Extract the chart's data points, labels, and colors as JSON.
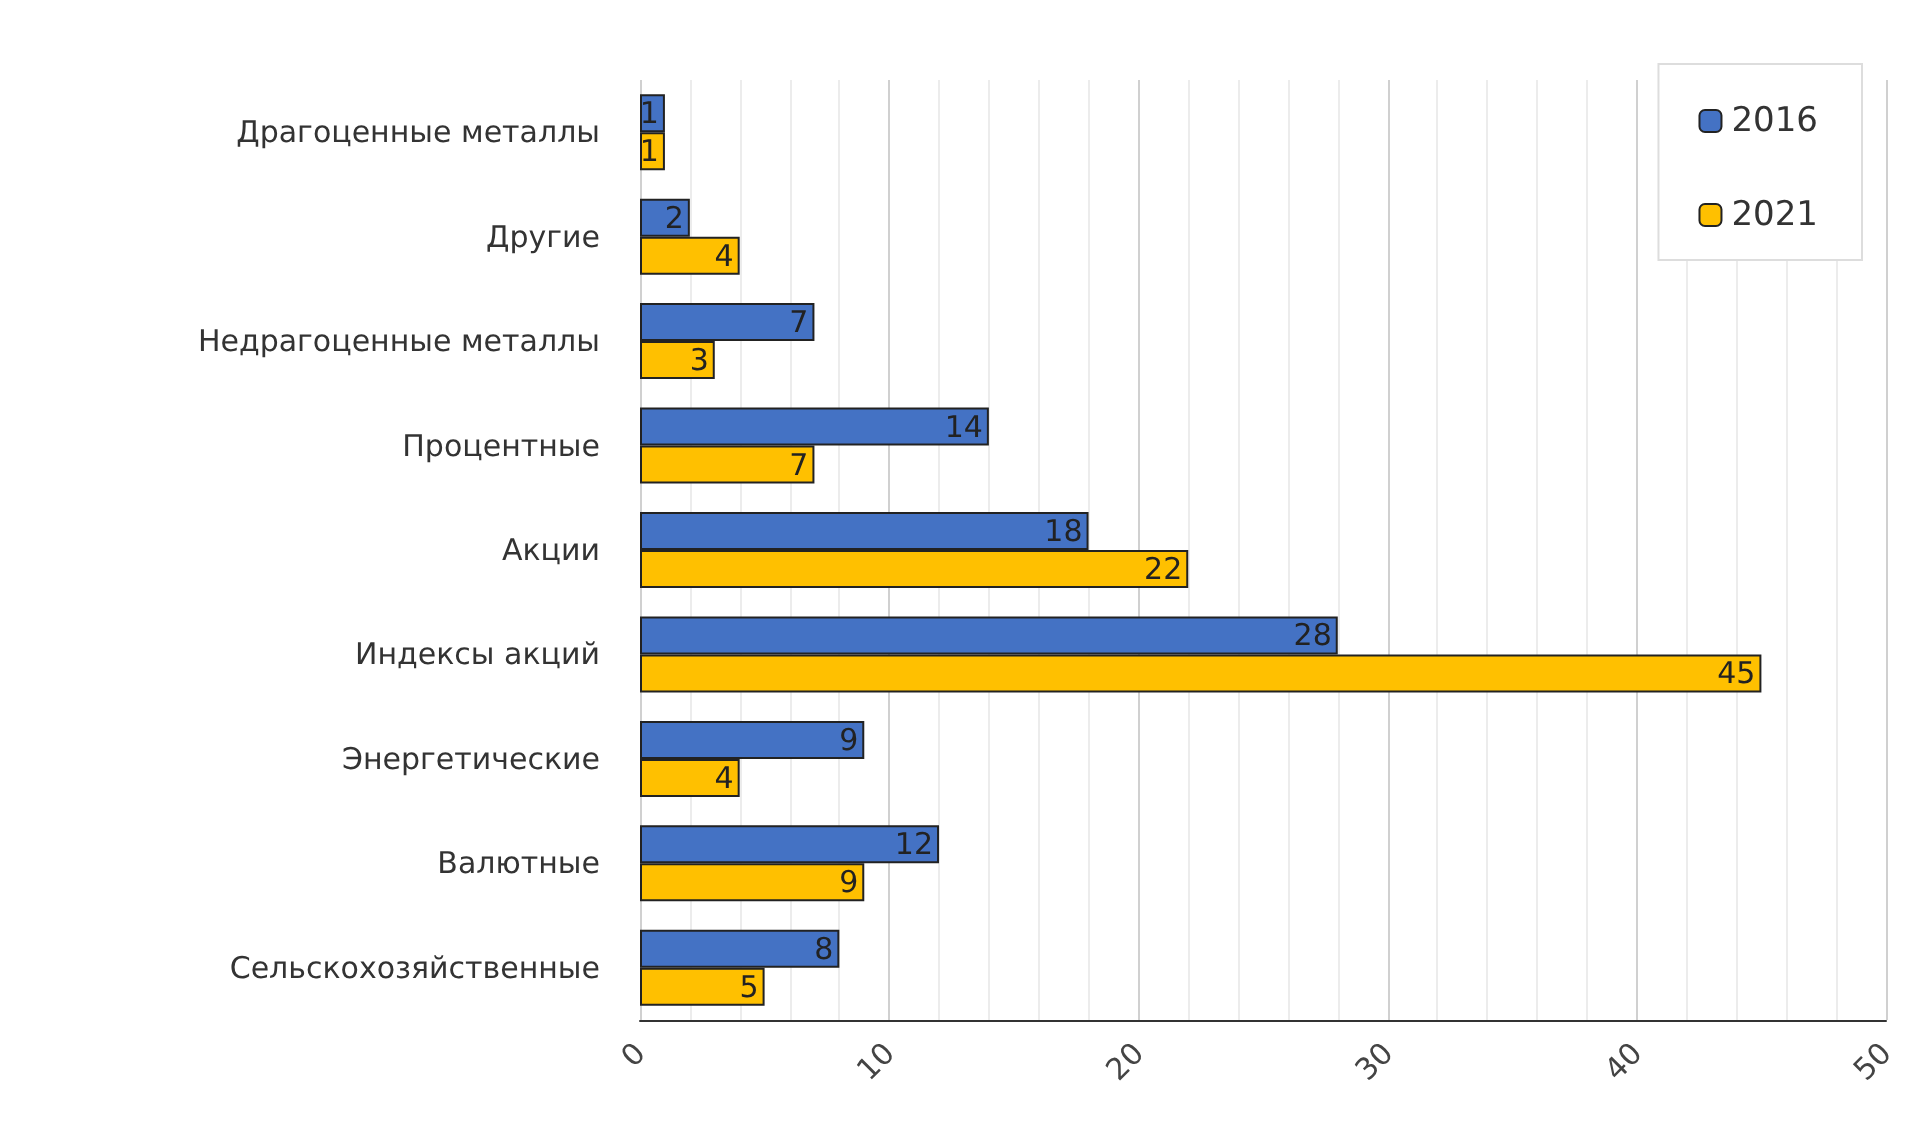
{
  "chart_data": {
    "type": "bar",
    "orientation": "horizontal",
    "categories": [
      "Драгоценные металлы",
      "Другие",
      "Недрагоценные металлы",
      "Процентные",
      "Акции",
      "Индексы акций",
      "Энергетические",
      "Валютные",
      "Сельскохозяйственные"
    ],
    "series": [
      {
        "name": "2016",
        "color": "#4472c4",
        "values": [
          1,
          2,
          7,
          14,
          18,
          28,
          9,
          12,
          8
        ]
      },
      {
        "name": "2021",
        "color": "#ffc000",
        "values": [
          1,
          4,
          3,
          7,
          22,
          45,
          4,
          9,
          5
        ]
      }
    ],
    "xlim": [
      0,
      50
    ],
    "xticks": [
      0,
      10,
      20,
      30,
      40,
      50
    ],
    "grid": "x",
    "legend": "top right",
    "data_labels": true
  }
}
